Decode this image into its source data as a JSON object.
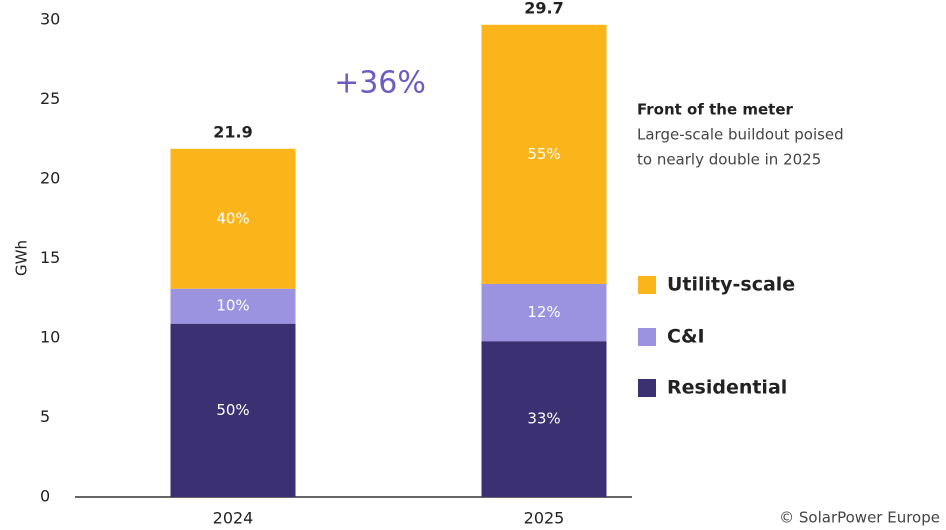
{
  "chart_data": {
    "type": "stacked_bar",
    "y_label": "GWh",
    "categories": [
      "2024",
      "2025"
    ],
    "series": [
      {
        "name": "Residential",
        "color": "#3b3172",
        "values": [
          10.9,
          9.8
        ],
        "labels": [
          "50%",
          "33%"
        ]
      },
      {
        "name": "C&I",
        "color": "#9b93e0",
        "values": [
          2.2,
          3.6
        ],
        "labels": [
          "10%",
          "12%"
        ]
      },
      {
        "name": "Utility-scale",
        "color": "#fbb41a",
        "values": [
          8.8,
          16.3
        ],
        "labels": [
          "40%",
          "55%"
        ]
      }
    ],
    "totals": [
      21.9,
      29.7
    ],
    "ylim": [
      0,
      30
    ],
    "yticks": [
      0,
      5,
      10,
      15,
      20,
      25,
      30
    ],
    "grid": false,
    "legend": "right",
    "annotation": "+36%",
    "note_title": "Front of the meter",
    "note_lines": [
      "Large-scale buildout poised",
      "to nearly double in 2025"
    ],
    "credit": "© SolarPower Europe"
  }
}
